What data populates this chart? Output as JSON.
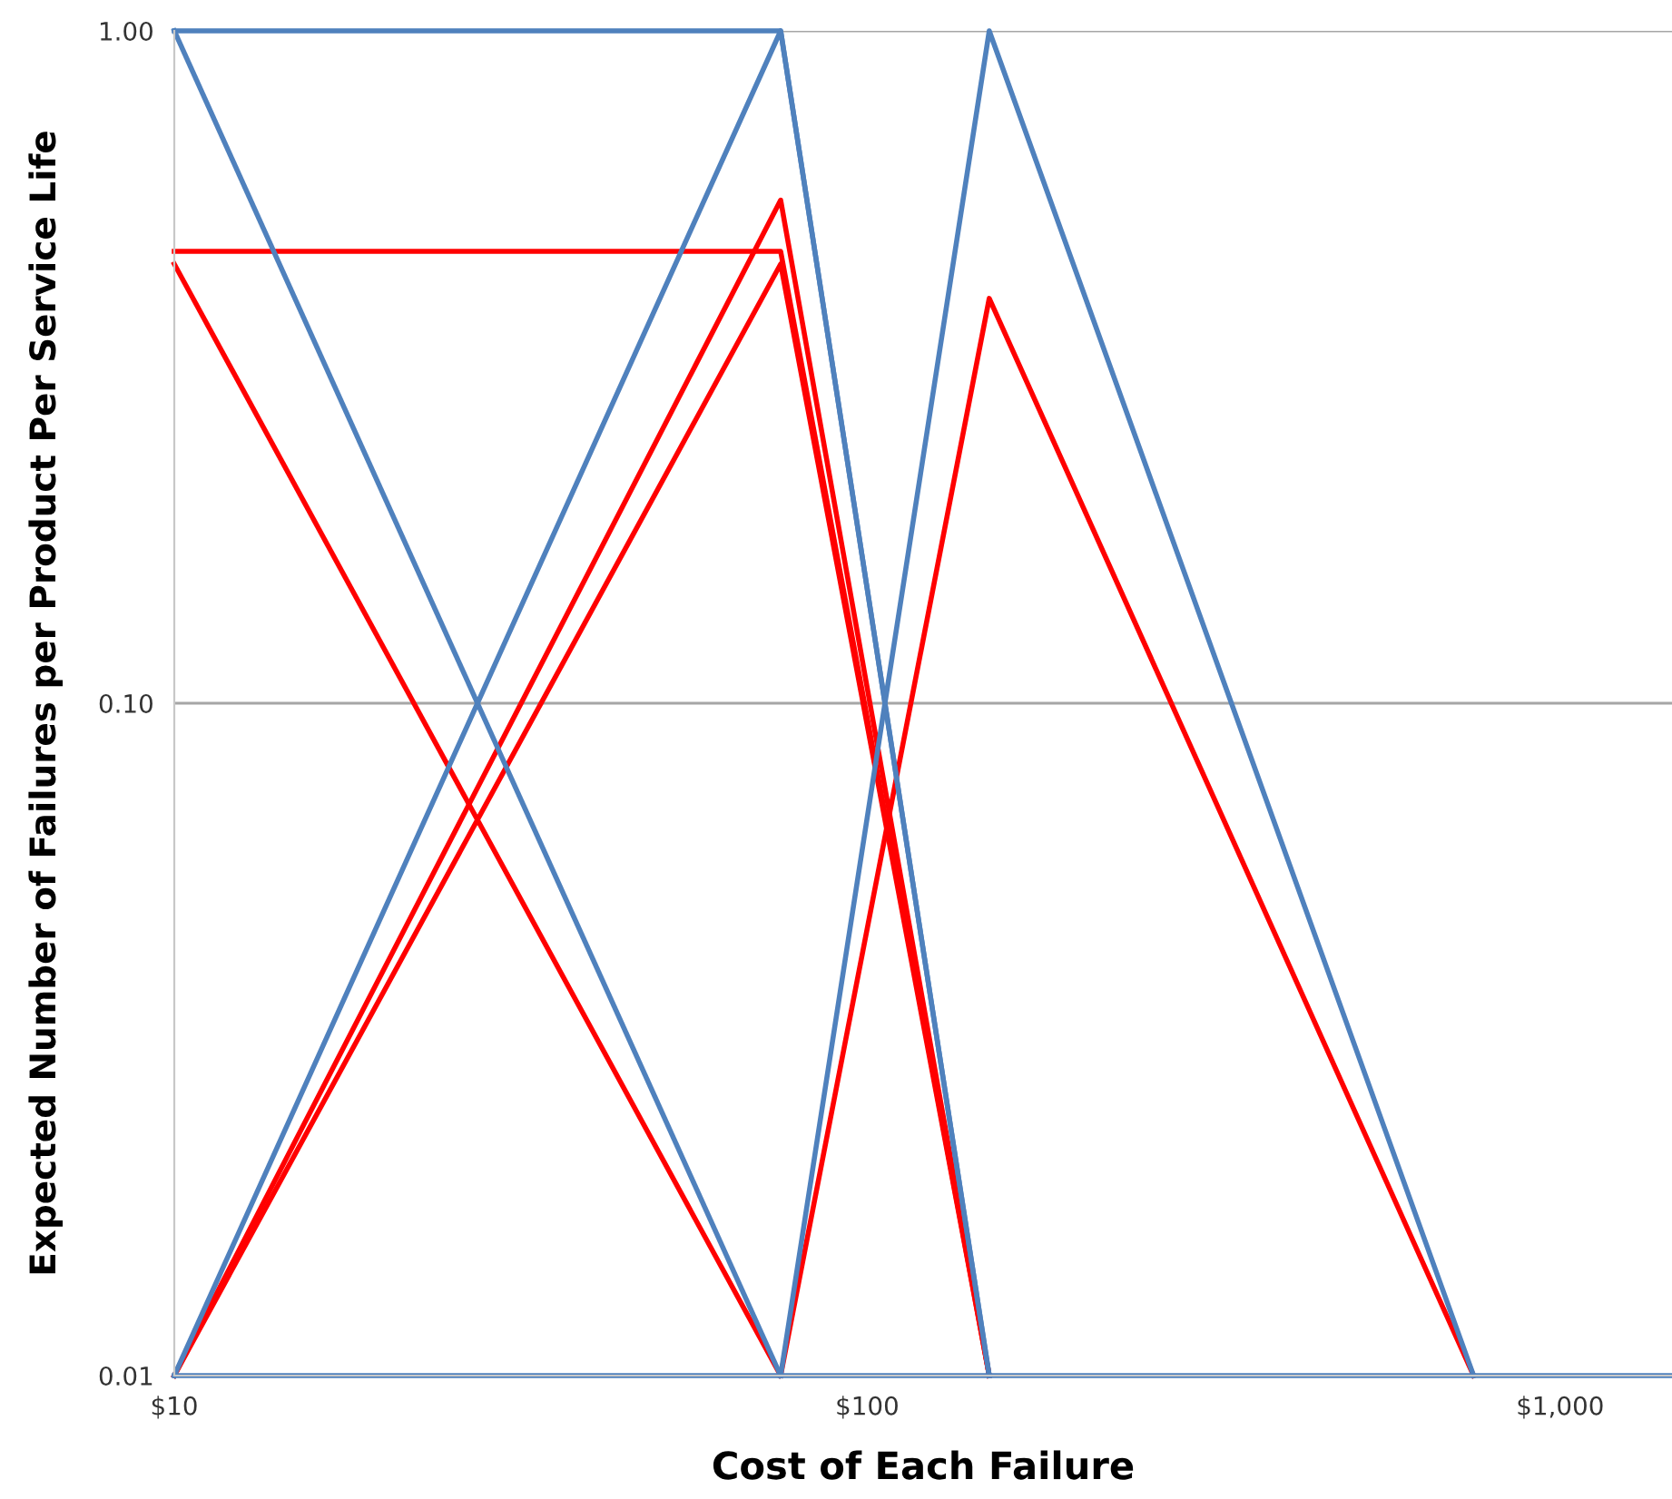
{
  "chart_data": {
    "type": "line",
    "xlabel": "Cost of Each Failure",
    "ylabel": "Expected Number of Failures per Product Per Service Life",
    "log": "xy",
    "x": [
      10,
      75,
      150,
      750,
      1450
    ],
    "xlim": [
      10,
      1450
    ],
    "xticks": [
      {
        "value": 10,
        "label": "$10"
      },
      {
        "value": 100,
        "label": "$100"
      },
      {
        "value": 1000,
        "label": "$1,000"
      }
    ],
    "ylim": [
      0.01,
      1
    ],
    "yticks": [
      {
        "value": 0.01,
        "label": "0.01"
      },
      {
        "value": 0.1,
        "label": "0.10"
      },
      {
        "value": 1,
        "label": "1.00"
      }
    ],
    "grid": "y",
    "marker": "none",
    "line_style": "solid",
    "series": [
      {
        "color": "#ff0000",
        "values": [
          0.47,
          0.47,
          0.01,
          null,
          null
        ]
      },
      {
        "color": "#ff0000",
        "values": [
          0.45,
          0.01,
          null,
          null,
          null
        ]
      },
      {
        "color": "#ff0000",
        "values": [
          0.01,
          0.56,
          0.01,
          null,
          null
        ]
      },
      {
        "color": "#ff0000",
        "values": [
          0.01,
          0.45,
          0.01,
          null,
          null
        ]
      },
      {
        "color": "#ff0000",
        "values": [
          null,
          0.01,
          0.4,
          0.01,
          null
        ]
      },
      {
        "color": "#4f81bd",
        "values": [
          1,
          1,
          0.01,
          null,
          null
        ]
      },
      {
        "color": "#4f81bd",
        "values": [
          1,
          0.01,
          null,
          null,
          null
        ]
      },
      {
        "color": "#4f81bd",
        "values": [
          0.01,
          1,
          0.01,
          null,
          null
        ]
      },
      {
        "color": "#4f81bd",
        "values": [
          null,
          0.01,
          1,
          0.01,
          null
        ]
      },
      {
        "color": "#4f81bd",
        "values": [
          0.01,
          0.01,
          0.01,
          0.01,
          0.01
        ]
      }
    ]
  }
}
